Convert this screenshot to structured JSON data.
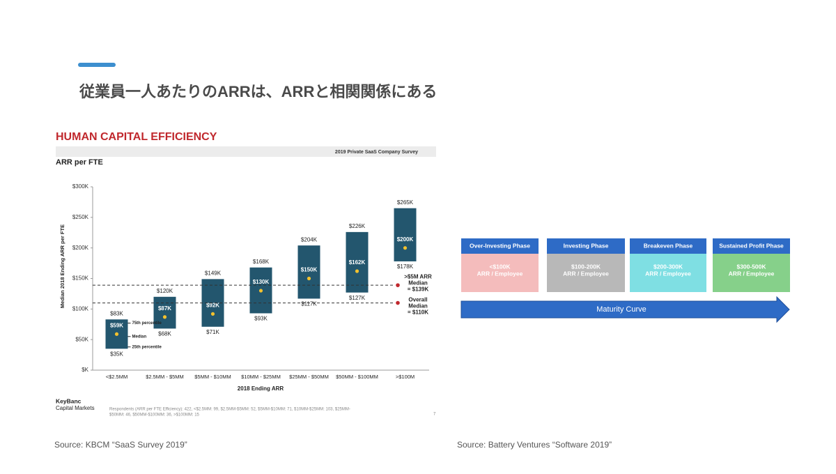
{
  "slide_title": "従業員一人あたりのARRは、ARRと相関関係にある",
  "chart_data": {
    "type": "range-bar",
    "title": "HUMAN CAPITAL EFFICIENCY",
    "survey_label": "2019 Private SaaS Company Survey",
    "subtitle": "ARR per FTE",
    "y_label": "Median 2018 Ending ARR per FTE",
    "x_label": "2018 Ending ARR",
    "categories": [
      "<$2.5MM",
      "$2.5MM - $5MM",
      "$5MM - $10MM",
      "$10MM - $25MM",
      "$25MM - $50MM",
      "$50MM - $100MM",
      ">$100M"
    ],
    "series": [
      {
        "name": "25th percentile",
        "color": "#23566e",
        "values": [
          35,
          68,
          71,
          93,
          117,
          127,
          178
        ],
        "value_labels": [
          "$35K",
          "$68K",
          "$71K",
          "$93K",
          "$117K",
          "$127K",
          "$178K"
        ]
      },
      {
        "name": "75th percentile",
        "color": "#23566e",
        "values": [
          83,
          120,
          149,
          168,
          204,
          226,
          265
        ],
        "value_labels": [
          "$83K",
          "$120K",
          "$149K",
          "$168K",
          "$204K",
          "$226K",
          "$265K"
        ]
      },
      {
        "name": "Median",
        "color": "#f2c12e",
        "values": [
          59,
          87,
          92,
          130,
          150,
          162,
          200
        ],
        "value_labels": [
          "$59K",
          "$87K",
          "$92K",
          "$130K",
          "$150K",
          "$162K",
          "$200K"
        ]
      }
    ],
    "ylim": [
      0,
      300
    ],
    "yticks": [
      {
        "value": 0,
        "label": "$K"
      },
      {
        "value": 50,
        "label": "$50K"
      },
      {
        "value": 100,
        "label": "$100K"
      },
      {
        "value": 150,
        "label": "$150K"
      },
      {
        "value": 200,
        "label": "$200K"
      },
      {
        "value": 250,
        "label": "$250K"
      },
      {
        "value": 300,
        "label": "$300K"
      }
    ],
    "reference_lines": [
      {
        "value": 139,
        "label": [
          ">$5M ARR",
          "Median",
          "= $139K"
        ],
        "color": "#c0282d"
      },
      {
        "value": 110,
        "label": [
          "Overall",
          "Median",
          "= $110K"
        ],
        "color": "#c0282d"
      }
    ]
  },
  "footer": {
    "brand": [
      "KeyBanc",
      "Capital Markets"
    ],
    "note": [
      "Respondents (ARR per FTE Efficiency): 422, <$2.5MM: 99, $2.5MM-$5MM: 52, $5MM-$10MM: 71, $10MM-$25MM: 103, $25MM-",
      "$50MM: 46, $50MM-$100MM: 36, >$100MM: 15"
    ],
    "page": "7"
  },
  "maturity": {
    "phases": [
      {
        "name": "Over-Investing Phase",
        "range": "<$100K",
        "unit": "ARR / Employee",
        "color": "#f4bcbc"
      },
      {
        "name": "Investing Phase",
        "range": "$100-200K",
        "unit": "ARR / Employee",
        "color": "#b8b8b8"
      },
      {
        "name": "Breakeven Phase",
        "range": "$200-300K",
        "unit": "ARR / Employee",
        "color": "#7fdfe3"
      },
      {
        "name": "Sustained Profit Phase",
        "range": "$300-500K",
        "unit": "ARR / Employee",
        "color": "#86d08a"
      }
    ],
    "arrow_label": "Maturity Curve"
  },
  "sources": [
    "Source: KBCM “SaaS Survey 2019”",
    "Source: Battery Ventures “Software 2019”"
  ]
}
